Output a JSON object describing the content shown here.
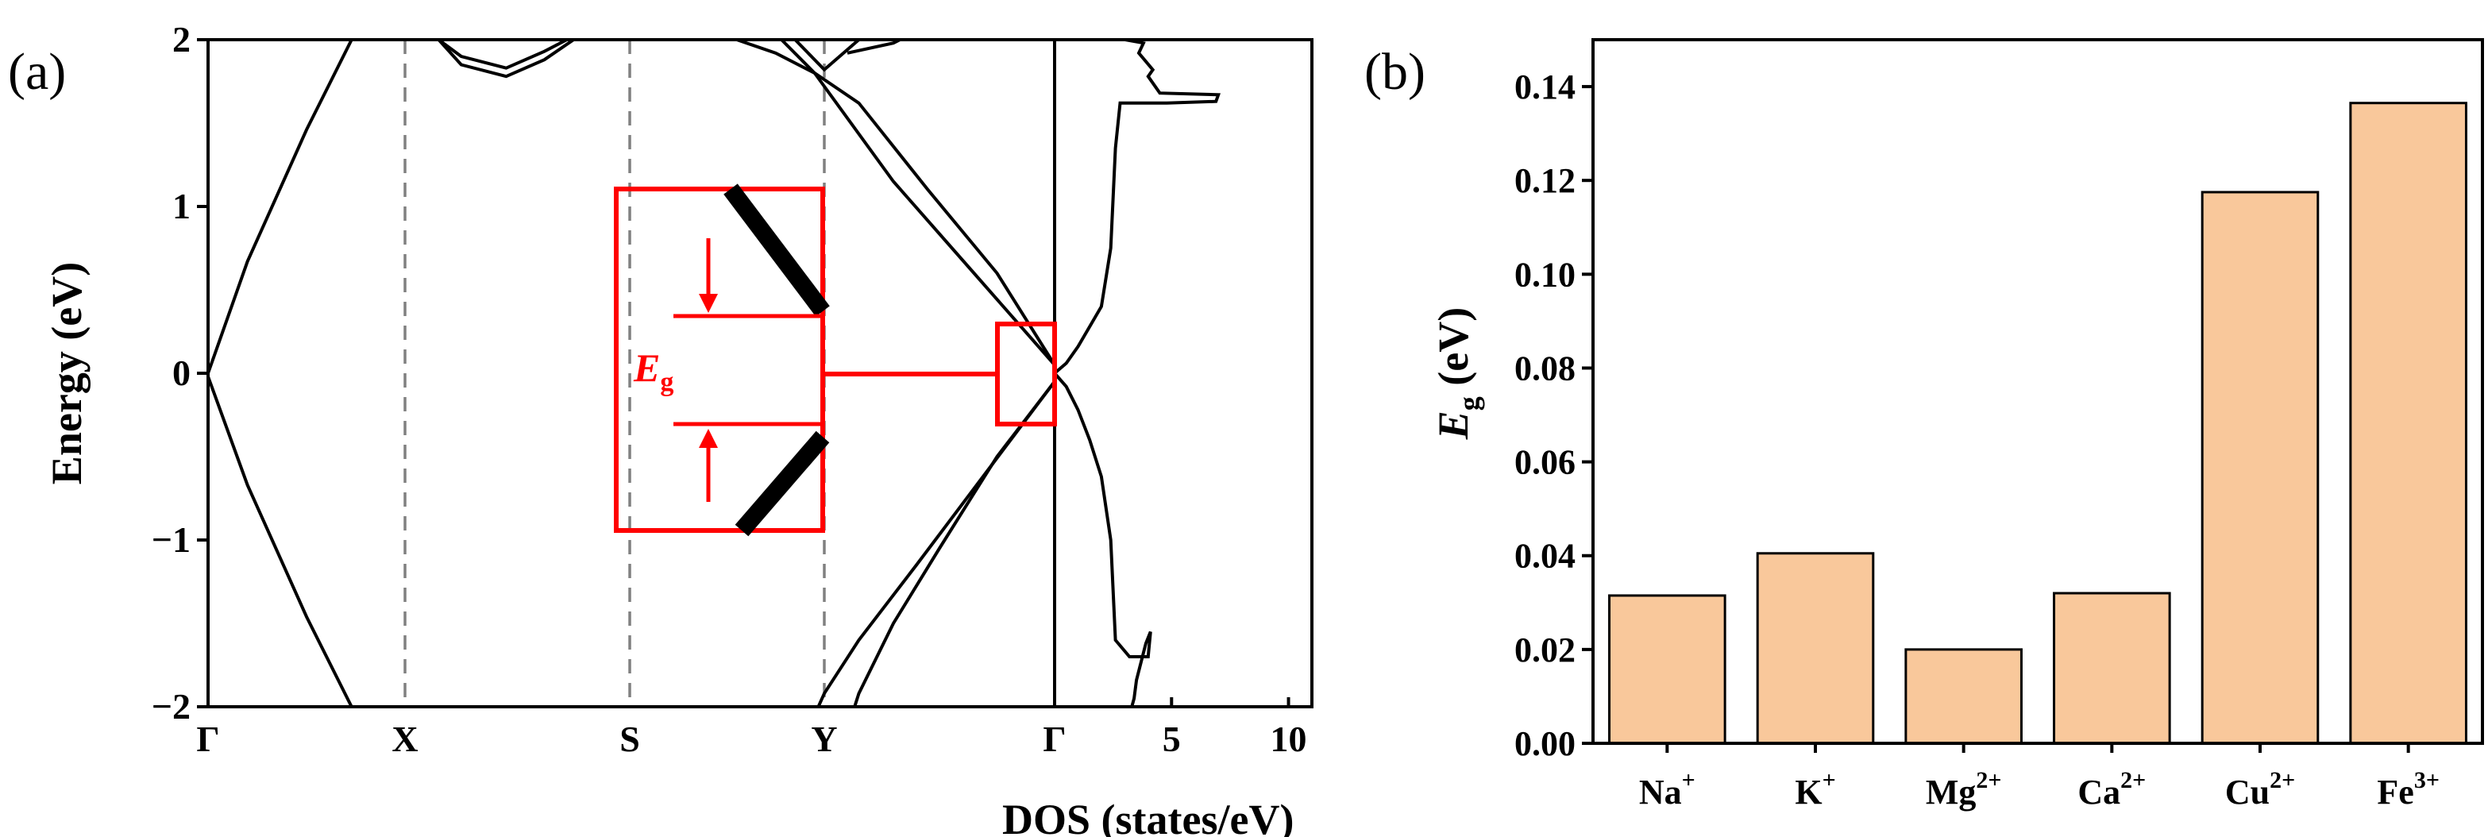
{
  "chart_data": [
    {
      "panel": "(a)",
      "type": "line",
      "title": "",
      "ylabel": "Energy (eV)",
      "xlabel_dos": "DOS (states/eV)",
      "ylim": [
        -2,
        2
      ],
      "yticks": [
        "2",
        "1",
        "0",
        "−1",
        "−2"
      ],
      "ytick_values": [
        2,
        1,
        0,
        -1,
        -2
      ],
      "kpoints": [
        {
          "label": "Γ",
          "pos": 0
        },
        {
          "label": "X",
          "pos": 1
        },
        {
          "label": "S",
          "pos": 2
        },
        {
          "label": "Y",
          "pos": 3
        },
        {
          "label": "Γ",
          "pos": 4
        }
      ],
      "dos_xlim": [
        0,
        11
      ],
      "dos_ticks": [
        "5",
        "10"
      ],
      "dos_tick_values": [
        5,
        10
      ],
      "inset_label_main": "E",
      "inset_label_sub": "g",
      "bands": [
        {
          "name": "band-1",
          "points": [
            [
              0,
              0
            ],
            [
              0.2,
              0.67
            ],
            [
              0.5,
              1.46
            ],
            [
              0.75,
              2.05
            ]
          ]
        },
        {
          "name": "band-2",
          "points": [
            [
              0,
              -0.02
            ],
            [
              0.2,
              -0.67
            ],
            [
              0.5,
              -1.46
            ],
            [
              0.75,
              -2.05
            ]
          ]
        },
        {
          "name": "band-3",
          "points": [
            [
              1.15,
              2.0
            ],
            [
              1.25,
              1.85
            ],
            [
              1.45,
              1.78
            ],
            [
              1.62,
              1.88
            ],
            [
              1.75,
              2.0
            ]
          ]
        },
        {
          "name": "band-4",
          "points": [
            [
              1.15,
              2.0
            ],
            [
              1.25,
              1.9
            ],
            [
              1.45,
              1.83
            ],
            [
              1.62,
              1.93
            ],
            [
              1.72,
              2.0
            ]
          ]
        },
        {
          "name": "band-5",
          "points": [
            [
              2.55,
              2.0
            ],
            [
              2.75,
              1.92
            ],
            [
              2.95,
              1.8
            ],
            [
              3.15,
              1.62
            ],
            [
              3.45,
              1.1
            ],
            [
              3.75,
              0.6
            ],
            [
              4.0,
              0.05
            ]
          ]
        },
        {
          "name": "band-6",
          "points": [
            [
              2.78,
              2.0
            ],
            [
              2.95,
              1.8
            ],
            [
              3.3,
              1.15
            ],
            [
              3.65,
              0.6
            ],
            [
              4.0,
              0.05
            ]
          ]
        },
        {
          "name": "band-7",
          "points": [
            [
              2.85,
              2.0
            ],
            [
              3.0,
              1.82
            ],
            [
              3.15,
              2.0
            ]
          ]
        },
        {
          "name": "band-8",
          "points": [
            [
              3.1,
              1.92
            ],
            [
              3.3,
              1.98
            ],
            [
              3.4,
              2.05
            ]
          ]
        },
        {
          "name": "band-9",
          "points": [
            [
              4.0,
              -0.05
            ],
            [
              3.7,
              -0.6
            ],
            [
              3.4,
              -1.15
            ],
            [
              3.15,
              -1.6
            ],
            [
              3.0,
              -1.92
            ],
            [
              2.95,
              -2.05
            ]
          ]
        },
        {
          "name": "band-10",
          "points": [
            [
              4.0,
              -0.05
            ],
            [
              3.75,
              -0.5
            ],
            [
              3.5,
              -1.05
            ],
            [
              3.3,
              -1.5
            ],
            [
              3.15,
              -1.92
            ],
            [
              3.12,
              -2.05
            ]
          ]
        }
      ],
      "dos": [
        [
          0,
          0
        ],
        [
          0.5,
          0.06
        ],
        [
          1.0,
          0.16
        ],
        [
          1.5,
          0.28
        ],
        [
          2.0,
          0.4
        ],
        [
          2.4,
          0.75
        ],
        [
          2.6,
          1.35
        ],
        [
          2.8,
          1.62
        ],
        [
          4.8,
          1.62
        ],
        [
          6.9,
          1.63
        ],
        [
          7.0,
          1.67
        ],
        [
          4.5,
          1.68
        ],
        [
          4.0,
          1.78
        ],
        [
          4.2,
          1.82
        ],
        [
          3.6,
          1.92
        ],
        [
          3.8,
          1.98
        ],
        [
          3.0,
          2.0
        ],
        [
          3.0,
          2.1
        ]
      ],
      "dos_neg": [
        [
          0,
          0
        ],
        [
          0.5,
          -0.08
        ],
        [
          1.0,
          -0.22
        ],
        [
          1.5,
          -0.4
        ],
        [
          2.0,
          -0.62
        ],
        [
          2.4,
          -1.0
        ],
        [
          2.6,
          -1.6
        ],
        [
          3.2,
          -1.7
        ],
        [
          4.0,
          -1.7
        ],
        [
          4.1,
          -1.55
        ],
        [
          3.9,
          -1.62
        ],
        [
          3.5,
          -1.84
        ],
        [
          3.4,
          -1.95
        ],
        [
          3.3,
          -2.0
        ],
        [
          3.3,
          -2.1
        ]
      ]
    },
    {
      "panel": "(b)",
      "type": "bar",
      "title": "",
      "ylabel_main": "E",
      "ylabel_sub": "g",
      "ylabel_rest": " (eV)",
      "ylim": [
        0,
        0.15
      ],
      "yticks": [
        "0.00",
        "0.02",
        "0.04",
        "0.06",
        "0.08",
        "0.10",
        "0.12",
        "0.14"
      ],
      "ytick_values": [
        0,
        0.02,
        0.04,
        0.06,
        0.08,
        0.1,
        0.12,
        0.14
      ],
      "categories": [
        {
          "base": "Na",
          "sup": "+"
        },
        {
          "base": "K",
          "sup": "+"
        },
        {
          "base": "Mg",
          "sup": "2+"
        },
        {
          "base": "Ca",
          "sup": "2+"
        },
        {
          "base": "Cu",
          "sup": "2+"
        },
        {
          "base": "Fe",
          "sup": "3+"
        }
      ],
      "values": [
        0.0315,
        0.0405,
        0.02,
        0.032,
        0.1175,
        0.1365
      ],
      "bar_color": "#f9c89b"
    }
  ],
  "colors": {
    "axis": "#000000",
    "dashed": "#808080",
    "inset": "#ff0000"
  }
}
